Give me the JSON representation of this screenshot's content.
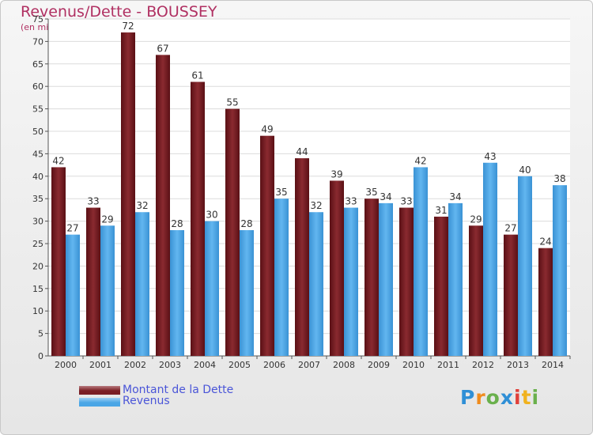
{
  "title": "Revenus/Dette - BOUSSEY",
  "subtitle": "(en milliers d'€)",
  "logo": {
    "text": "Proxiti",
    "letters": [
      "P",
      "r",
      "o",
      "x",
      "i",
      "t",
      "i"
    ],
    "colors": [
      "#2f8fd6",
      "#f08c1e",
      "#6ab04c",
      "#2f8fd6",
      "#e0403a",
      "#f0b21e",
      "#6ab04c"
    ]
  },
  "colors": {
    "dette": "#7a1e24",
    "revenus": "#4aa6e6",
    "title": "#b03062",
    "legend_text": "#4a55d8"
  },
  "chart_data": {
    "type": "bar",
    "title": "Revenus/Dette - BOUSSEY",
    "subtitle": "(en milliers d'€)",
    "xlabel": "",
    "ylabel": "",
    "ylim": [
      0,
      75
    ],
    "yticks": [
      0,
      5,
      10,
      15,
      20,
      25,
      30,
      35,
      40,
      45,
      50,
      55,
      60,
      65,
      70,
      75
    ],
    "grid": true,
    "legend": "bottom-left",
    "categories": [
      "2000",
      "2001",
      "2002",
      "2003",
      "2004",
      "2005",
      "2006",
      "2007",
      "2008",
      "2009",
      "2010",
      "2011",
      "2012",
      "2013",
      "2014"
    ],
    "series": [
      {
        "name": "Montant de la Dette",
        "color": "#7a1e24",
        "values": [
          42,
          33,
          72,
          67,
          61,
          55,
          49,
          44,
          39,
          35,
          33,
          31,
          29,
          27,
          24
        ]
      },
      {
        "name": "Revenus",
        "color": "#4aa6e6",
        "values": [
          27,
          29,
          32,
          28,
          30,
          28,
          35,
          32,
          33,
          34,
          42,
          34,
          43,
          40,
          38
        ]
      }
    ]
  }
}
